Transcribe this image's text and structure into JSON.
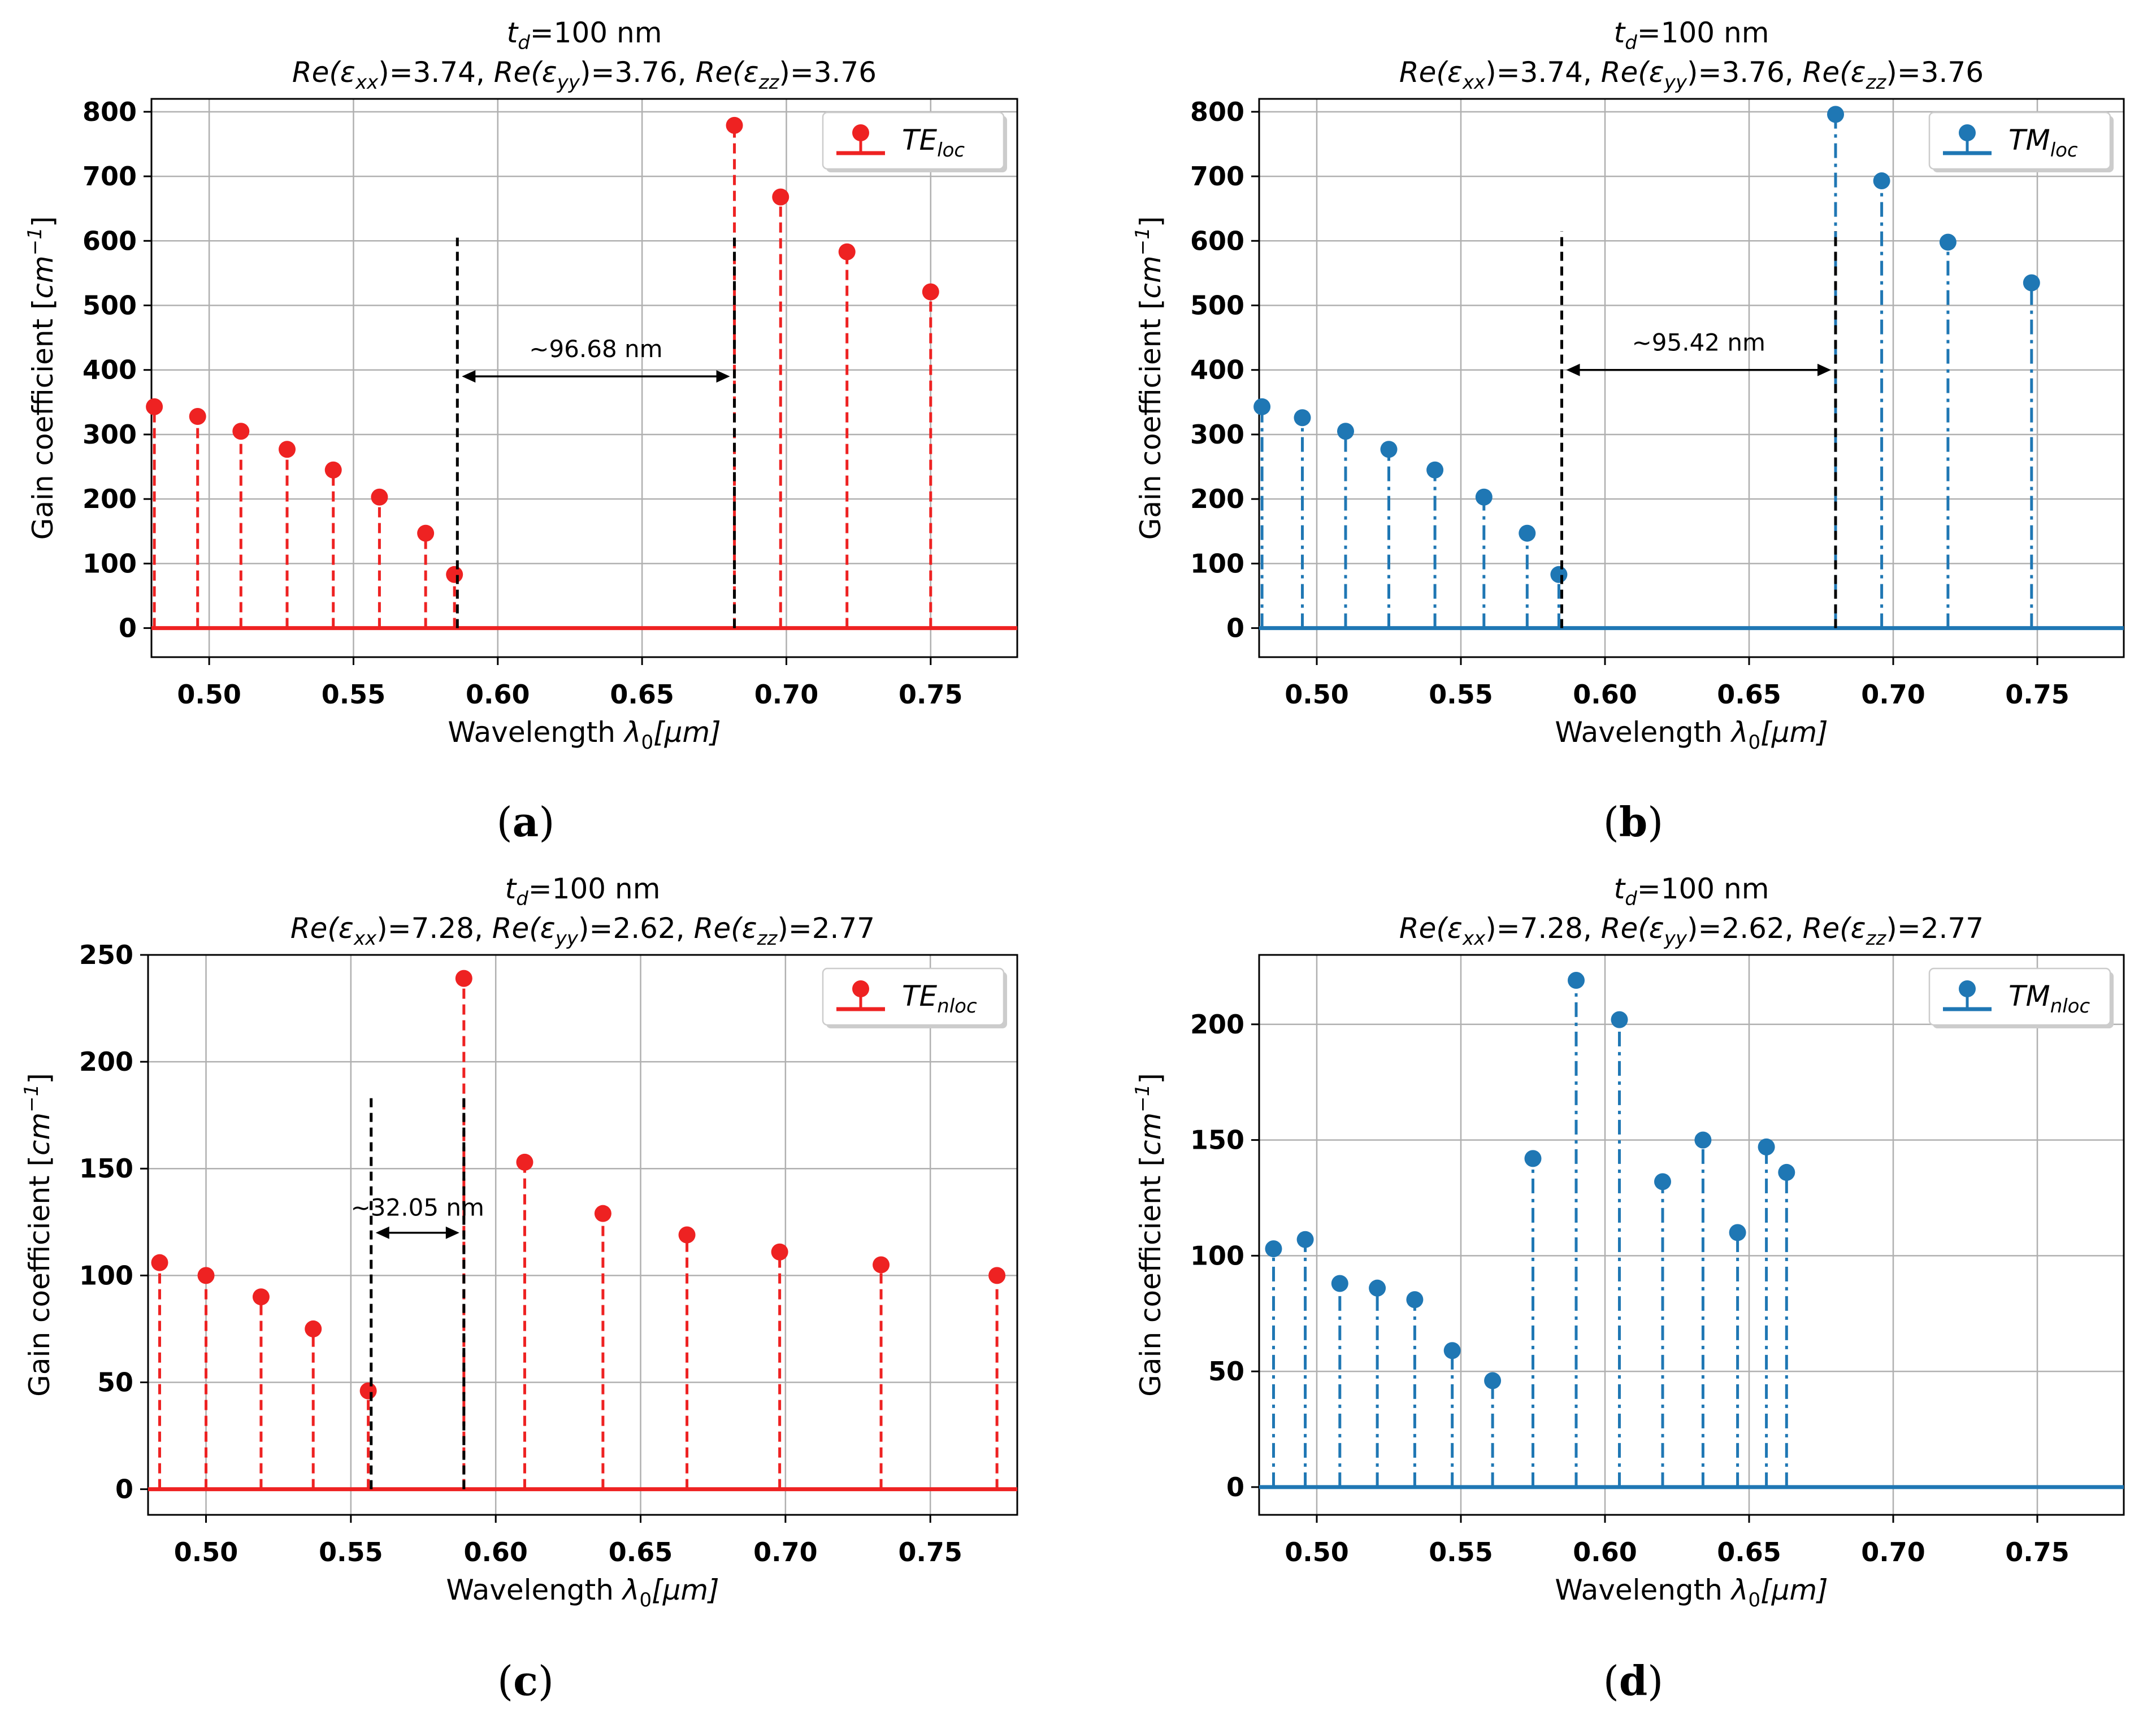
{
  "figure": {
    "panels": [
      {
        "id": "a",
        "label": "a",
        "title_line1": {
          "var": "t",
          "sub": "d",
          "rest": "=100 nm"
        },
        "title_line2": [
          {
            "text": "Re(ε",
            "sub": "xx",
            "tail": ")=3.74, "
          },
          {
            "text": "Re(ε",
            "sub": "yy",
            "tail": ")=3.76, "
          },
          {
            "text": "Re(ε",
            "sub": "zz",
            "tail": ")=3.76"
          }
        ],
        "ylabel": "Gain coefficient [",
        "ylabel_unit": "cm",
        "ylabel_exp": "−1",
        "ylabel_close": "]",
        "xlabel": "Wavelength ",
        "xlabel_sym": "λ",
        "xlabel_sub": "0",
        "xlabel_unit": "[μm]",
        "legend_main": "TE",
        "legend_sub": "loc",
        "color": "#ee2222",
        "line_style": "dashed",
        "annotation": "~96.68 nm"
      },
      {
        "id": "b",
        "label": "b",
        "title_line1": {
          "var": "t",
          "sub": "d",
          "rest": "=100 nm"
        },
        "title_line2": [
          {
            "text": "Re(ε",
            "sub": "xx",
            "tail": ")=3.74, "
          },
          {
            "text": "Re(ε",
            "sub": "yy",
            "tail": ")=3.76, "
          },
          {
            "text": "Re(ε",
            "sub": "zz",
            "tail": ")=3.76"
          }
        ],
        "ylabel": "Gain coefficient [",
        "ylabel_unit": "cm",
        "ylabel_exp": "−1",
        "ylabel_close": "]",
        "xlabel": "Wavelength ",
        "xlabel_sym": "λ",
        "xlabel_sub": "0",
        "xlabel_unit": "[μm]",
        "legend_main": "TM",
        "legend_sub": "loc",
        "color": "#1f77b4",
        "line_style": "dashdot",
        "annotation": "~95.42 nm"
      },
      {
        "id": "c",
        "label": "c",
        "title_line1": {
          "var": "t",
          "sub": "d",
          "rest": "=100 nm"
        },
        "title_line2": [
          {
            "text": "Re(ε",
            "sub": "xx",
            "tail": ")=7.28, "
          },
          {
            "text": "Re(ε",
            "sub": "yy",
            "tail": ")=2.62, "
          },
          {
            "text": "Re(ε",
            "sub": "zz",
            "tail": ")=2.77"
          }
        ],
        "ylabel": "Gain coefficient [",
        "ylabel_unit": "cm",
        "ylabel_exp": "−1",
        "ylabel_close": "]",
        "xlabel": "Wavelength ",
        "xlabel_sym": "λ",
        "xlabel_sub": "0",
        "xlabel_unit": "[μm]",
        "legend_main": "TE",
        "legend_sub": "nloc",
        "color": "#ee2222",
        "line_style": "dashed",
        "annotation": "~32.05 nm"
      },
      {
        "id": "d",
        "label": "d",
        "title_line1": {
          "var": "t",
          "sub": "d",
          "rest": "=100 nm"
        },
        "title_line2": [
          {
            "text": "Re(ε",
            "sub": "xx",
            "tail": ")=7.28, "
          },
          {
            "text": "Re(ε",
            "sub": "yy",
            "tail": ")=2.62, "
          },
          {
            "text": "Re(ε",
            "sub": "zz",
            "tail": ")=2.77"
          }
        ],
        "ylabel": "Gain coefficient [",
        "ylabel_unit": "cm",
        "ylabel_exp": "−1",
        "ylabel_close": "]",
        "xlabel": "Wavelength ",
        "xlabel_sym": "λ",
        "xlabel_sub": "0",
        "xlabel_unit": "[μm]",
        "legend_main": "TM",
        "legend_sub": "nloc",
        "color": "#1f77b4",
        "line_style": "dashdot",
        "annotation": ""
      }
    ]
  },
  "chart_data": [
    {
      "type": "stem",
      "panel": "a",
      "legend_placement": "top-right",
      "grid": true,
      "xlim": [
        0.48,
        0.78
      ],
      "ylim": [
        -45,
        820
      ],
      "xticks": [
        0.5,
        0.55,
        0.6,
        0.65,
        0.7,
        0.75
      ],
      "xtick_labels": [
        "0.50",
        "0.55",
        "0.60",
        "0.65",
        "0.70",
        "0.75"
      ],
      "yticks": [
        0,
        100,
        200,
        300,
        400,
        500,
        600,
        700,
        800
      ],
      "ytick_labels": [
        "0",
        "100",
        "200",
        "300",
        "400",
        "500",
        "600",
        "700",
        "800"
      ],
      "series": [
        {
          "x": [
            0.481,
            0.496,
            0.511,
            0.527,
            0.543,
            0.559,
            0.575,
            0.585,
            0.682,
            0.698,
            0.721,
            0.75
          ],
          "values": [
            343,
            328,
            305,
            277,
            245,
            203,
            147,
            83,
            779,
            668,
            583,
            521
          ]
        }
      ],
      "markers": {
        "vlines_x": [
          0.586,
          0.682
        ],
        "vline_top": 605,
        "arrow_y": 390,
        "annotation_y": 420
      }
    },
    {
      "type": "stem",
      "panel": "b",
      "legend_placement": "top-right",
      "grid": true,
      "xlim": [
        0.48,
        0.78
      ],
      "ylim": [
        -45,
        820
      ],
      "xticks": [
        0.5,
        0.55,
        0.6,
        0.65,
        0.7,
        0.75
      ],
      "xtick_labels": [
        "0.50",
        "0.55",
        "0.60",
        "0.65",
        "0.70",
        "0.75"
      ],
      "yticks": [
        0,
        100,
        200,
        300,
        400,
        500,
        600,
        700,
        800
      ],
      "ytick_labels": [
        "0",
        "100",
        "200",
        "300",
        "400",
        "500",
        "600",
        "700",
        "800"
      ],
      "series": [
        {
          "x": [
            0.481,
            0.495,
            0.51,
            0.525,
            0.541,
            0.558,
            0.573,
            0.584,
            0.68,
            0.696,
            0.719,
            0.748
          ],
          "values": [
            343,
            326,
            305,
            277,
            245,
            203,
            147,
            83,
            796,
            693,
            598,
            535
          ]
        }
      ],
      "markers": {
        "vlines_x": [
          0.585,
          0.68
        ],
        "vline_top": 615,
        "arrow_y": 400,
        "annotation_y": 430
      }
    },
    {
      "type": "stem",
      "panel": "c",
      "legend_placement": "top-right",
      "grid": true,
      "xlim": [
        0.48,
        0.78
      ],
      "ylim": [
        -12,
        250
      ],
      "xticks": [
        0.5,
        0.55,
        0.6,
        0.65,
        0.7,
        0.75
      ],
      "xtick_labels": [
        "0.50",
        "0.55",
        "0.60",
        "0.65",
        "0.70",
        "0.75"
      ],
      "yticks": [
        0,
        50,
        100,
        150,
        200,
        250
      ],
      "ytick_labels": [
        "0",
        "50",
        "100",
        "150",
        "200",
        "250"
      ],
      "series": [
        {
          "x": [
            0.484,
            0.5,
            0.519,
            0.537,
            0.556,
            0.589,
            0.61,
            0.637,
            0.666,
            0.698,
            0.733,
            0.773
          ],
          "values": [
            106,
            100,
            90,
            75,
            46,
            239,
            153,
            129,
            119,
            111,
            105,
            100
          ]
        }
      ],
      "markers": {
        "vlines_x": [
          0.557,
          0.589
        ],
        "vline_top": 185,
        "arrow_y": 120,
        "annotation_y": 128
      }
    },
    {
      "type": "stem",
      "panel": "d",
      "legend_placement": "top-right",
      "grid": true,
      "xlim": [
        0.48,
        0.78
      ],
      "ylim": [
        -12,
        230
      ],
      "xticks": [
        0.5,
        0.55,
        0.6,
        0.65,
        0.7,
        0.75
      ],
      "xtick_labels": [
        "0.50",
        "0.55",
        "0.60",
        "0.65",
        "0.70",
        "0.75"
      ],
      "yticks": [
        0,
        50,
        100,
        150,
        200
      ],
      "ytick_labels": [
        "0",
        "50",
        "100",
        "150",
        "200"
      ],
      "series": [
        {
          "x": [
            0.485,
            0.496,
            0.508,
            0.521,
            0.534,
            0.547,
            0.561,
            0.575,
            0.59,
            0.605,
            0.62,
            0.634,
            0.646,
            0.656,
            0.663
          ],
          "values": [
            103,
            107,
            88,
            86,
            81,
            59,
            46,
            142,
            219,
            202,
            132,
            150,
            110,
            147,
            136
          ]
        }
      ],
      "markers": null
    }
  ]
}
